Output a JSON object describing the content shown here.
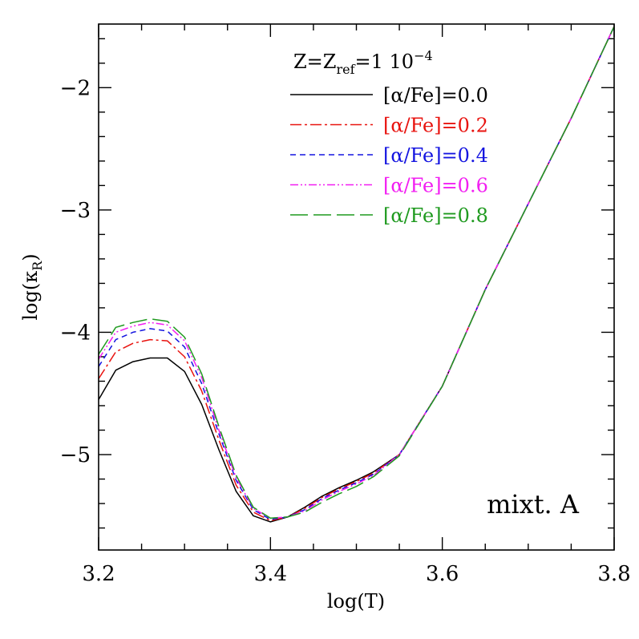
{
  "chart_data": {
    "type": "line",
    "xlabel": "log(T)",
    "ylabel_main": "log(κ",
    "ylabel_sub": "R",
    "ylabel_close": ")",
    "xlim": [
      3.2,
      3.8
    ],
    "ylim": [
      -5.78,
      -1.48
    ],
    "x_ticks": [
      {
        "value": 3.2,
        "label": "3.2"
      },
      {
        "value": 3.4,
        "label": "3.4"
      },
      {
        "value": 3.6,
        "label": "3.6"
      },
      {
        "value": 3.8,
        "label": "3.8"
      }
    ],
    "y_ticks": [
      {
        "value": -2,
        "label": "−2"
      },
      {
        "value": -3,
        "label": "−3"
      },
      {
        "value": -4,
        "label": "−4"
      },
      {
        "value": -5,
        "label": "−5"
      }
    ],
    "x_minor_step": 0.05,
    "y_minor_step": 0.2,
    "grid": false,
    "legend_position": "top-right",
    "legend_title": {
      "main": "Z=Z",
      "sub": "ref",
      "rest": "=1 10",
      "sup": "−4"
    },
    "annotation": "mixt. A",
    "series": [
      {
        "name": "[α/Fe]=0.0",
        "color": "#000000",
        "dash": "solid",
        "x": [
          3.2,
          3.22,
          3.24,
          3.26,
          3.28,
          3.3,
          3.32,
          3.34,
          3.36,
          3.38,
          3.4,
          3.42,
          3.44,
          3.46,
          3.48,
          3.5,
          3.52,
          3.55,
          3.6,
          3.65,
          3.7,
          3.75,
          3.8
        ],
        "y": [
          -4.55,
          -4.31,
          -4.24,
          -4.21,
          -4.21,
          -4.32,
          -4.59,
          -4.96,
          -5.3,
          -5.5,
          -5.55,
          -5.51,
          -5.43,
          -5.34,
          -5.27,
          -5.21,
          -5.14,
          -5.0,
          -4.44,
          -3.65,
          -2.95,
          -2.25,
          -1.5
        ]
      },
      {
        "name": "[α/Fe]=0.2",
        "color": "#e8130f",
        "dash": "dashdot",
        "x": [
          3.2,
          3.22,
          3.24,
          3.26,
          3.28,
          3.3,
          3.32,
          3.34,
          3.36,
          3.38,
          3.4,
          3.42,
          3.44,
          3.46,
          3.48,
          3.5,
          3.52,
          3.55,
          3.6,
          3.65,
          3.7,
          3.75,
          3.8
        ],
        "y": [
          -4.38,
          -4.16,
          -4.09,
          -4.06,
          -4.07,
          -4.2,
          -4.48,
          -4.88,
          -5.25,
          -5.47,
          -5.54,
          -5.51,
          -5.44,
          -5.35,
          -5.28,
          -5.22,
          -5.15,
          -5.0,
          -4.44,
          -3.65,
          -2.95,
          -2.25,
          -1.5
        ]
      },
      {
        "name": "[α/Fe]=0.4",
        "color": "#1515e0",
        "dash": "dashed",
        "x": [
          3.2,
          3.22,
          3.24,
          3.26,
          3.28,
          3.3,
          3.32,
          3.34,
          3.36,
          3.38,
          3.4,
          3.42,
          3.44,
          3.46,
          3.48,
          3.5,
          3.52,
          3.55,
          3.6,
          3.65,
          3.7,
          3.75,
          3.8
        ],
        "y": [
          -4.28,
          -4.06,
          -4.0,
          -3.97,
          -3.99,
          -4.12,
          -4.42,
          -4.83,
          -5.21,
          -5.45,
          -5.53,
          -5.51,
          -5.45,
          -5.36,
          -5.29,
          -5.23,
          -5.16,
          -5.0,
          -4.44,
          -3.65,
          -2.95,
          -2.25,
          -1.5
        ]
      },
      {
        "name": "[α/Fe]=0.6",
        "color": "#f21ef2",
        "dash": "dashdotdot",
        "x": [
          3.2,
          3.22,
          3.24,
          3.26,
          3.28,
          3.3,
          3.32,
          3.34,
          3.36,
          3.38,
          3.4,
          3.42,
          3.44,
          3.46,
          3.48,
          3.5,
          3.52,
          3.55,
          3.6,
          3.65,
          3.7,
          3.75,
          3.8
        ],
        "y": [
          -4.22,
          -4.0,
          -3.95,
          -3.92,
          -3.94,
          -4.07,
          -4.37,
          -4.8,
          -5.19,
          -5.44,
          -5.52,
          -5.51,
          -5.46,
          -5.37,
          -5.3,
          -5.24,
          -5.17,
          -5.0,
          -4.44,
          -3.65,
          -2.95,
          -2.25,
          -1.5
        ]
      },
      {
        "name": "[α/Fe]=0.8",
        "color": "#1f9a1f",
        "dash": "longdash",
        "x": [
          3.2,
          3.22,
          3.24,
          3.26,
          3.28,
          3.3,
          3.32,
          3.34,
          3.36,
          3.38,
          3.4,
          3.42,
          3.44,
          3.46,
          3.48,
          3.5,
          3.52,
          3.55,
          3.6,
          3.65,
          3.7,
          3.75,
          3.8
        ],
        "y": [
          -4.18,
          -3.96,
          -3.92,
          -3.89,
          -3.91,
          -4.04,
          -4.34,
          -4.77,
          -5.17,
          -5.43,
          -5.52,
          -5.51,
          -5.47,
          -5.39,
          -5.32,
          -5.26,
          -5.18,
          -5.01,
          -4.44,
          -3.65,
          -2.95,
          -2.25,
          -1.5
        ]
      }
    ]
  }
}
